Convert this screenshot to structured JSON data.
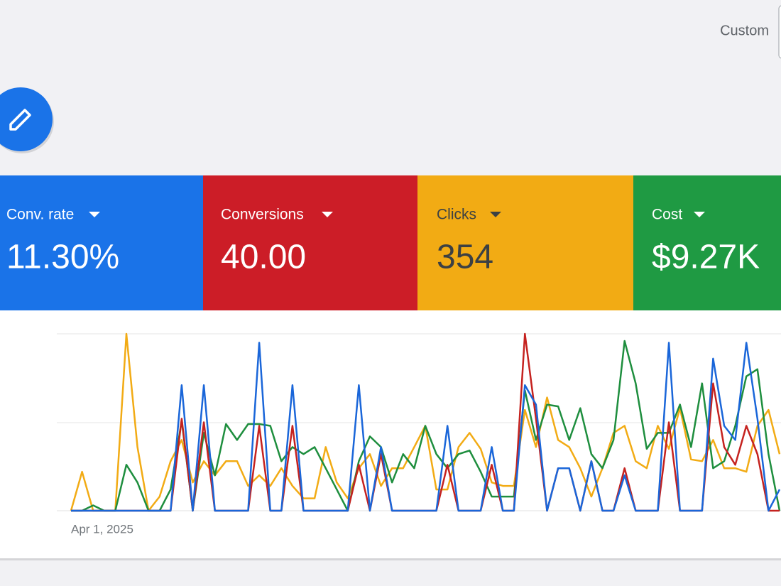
{
  "header": {
    "date_range_label": "Custom"
  },
  "tiles": [
    {
      "label": "Conv. rate",
      "value": "11.30%"
    },
    {
      "label": "Conversions",
      "value": "40.00"
    },
    {
      "label": "Clicks",
      "value": "354"
    },
    {
      "label": "Cost",
      "value": "$9.27K"
    }
  ],
  "chart_data": {
    "type": "line",
    "categories": [
      "Apr 1, 2025",
      null,
      null,
      null,
      null,
      null,
      null,
      null,
      null,
      null,
      null,
      null,
      null,
      null,
      null,
      null,
      null,
      null,
      null,
      null,
      null,
      null,
      null,
      null,
      null,
      null,
      null,
      null,
      null,
      null,
      null,
      null,
      null,
      null,
      null,
      null,
      null,
      null,
      null,
      null,
      null,
      null,
      null,
      null,
      null,
      null,
      null,
      null,
      null,
      null,
      null,
      null,
      null,
      null,
      null,
      null,
      null,
      null,
      null,
      null,
      null,
      null,
      null,
      null,
      null
    ],
    "ylim": [
      0,
      100
    ],
    "series": [
      {
        "color": "#f2ab14",
        "values": [
          0,
          22,
          0,
          0,
          0,
          100,
          36,
          0,
          8,
          28,
          40,
          16,
          28,
          20,
          28,
          28,
          14,
          20,
          14,
          24,
          14,
          7,
          7,
          36,
          16,
          7,
          24,
          32,
          14,
          24,
          24,
          36,
          48,
          12,
          12,
          36,
          44,
          35,
          16,
          14,
          14,
          57,
          36,
          64,
          40,
          36,
          24,
          8,
          24,
          44,
          48,
          28,
          24,
          48,
          35,
          58,
          29,
          28,
          40,
          24,
          24,
          22,
          48,
          57,
          32
        ]
      },
      {
        "color": "#1e8e3e",
        "values": [
          0,
          0,
          3,
          0,
          0,
          26,
          16,
          0,
          0,
          12,
          51,
          0,
          44,
          20,
          49,
          40,
          49,
          49,
          48,
          28,
          36,
          32,
          36,
          24,
          12,
          0,
          28,
          42,
          36,
          16,
          32,
          24,
          48,
          32,
          24,
          32,
          34,
          22,
          8,
          8,
          8,
          68,
          40,
          60,
          59,
          40,
          58,
          32,
          24,
          40,
          96,
          72,
          35,
          44,
          44,
          60,
          36,
          72,
          24,
          28,
          48,
          76,
          80,
          32,
          0
        ]
      },
      {
        "color": "#c5221f",
        "values": [
          0,
          0,
          0,
          0,
          0,
          0,
          0,
          0,
          0,
          0,
          52,
          0,
          50,
          0,
          0,
          0,
          0,
          48,
          0,
          0,
          48,
          0,
          0,
          0,
          0,
          0,
          26,
          0,
          32,
          0,
          0,
          0,
          0,
          0,
          26,
          0,
          0,
          0,
          26,
          0,
          0,
          100,
          52,
          0,
          24,
          24,
          0,
          28,
          0,
          0,
          24,
          0,
          0,
          0,
          50,
          0,
          0,
          0,
          72,
          36,
          26,
          48,
          32,
          0,
          0
        ]
      },
      {
        "color": "#1a66d9",
        "values": [
          0,
          0,
          0,
          0,
          0,
          0,
          0,
          0,
          0,
          0,
          71,
          0,
          71,
          0,
          0,
          0,
          0,
          95,
          0,
          0,
          71,
          0,
          0,
          0,
          0,
          0,
          71,
          0,
          36,
          0,
          0,
          0,
          0,
          0,
          48,
          0,
          0,
          0,
          36,
          0,
          0,
          71,
          60,
          0,
          24,
          24,
          0,
          28,
          0,
          0,
          20,
          0,
          0,
          0,
          95,
          0,
          0,
          0,
          86,
          48,
          40,
          95,
          52,
          0,
          12
        ]
      }
    ]
  }
}
